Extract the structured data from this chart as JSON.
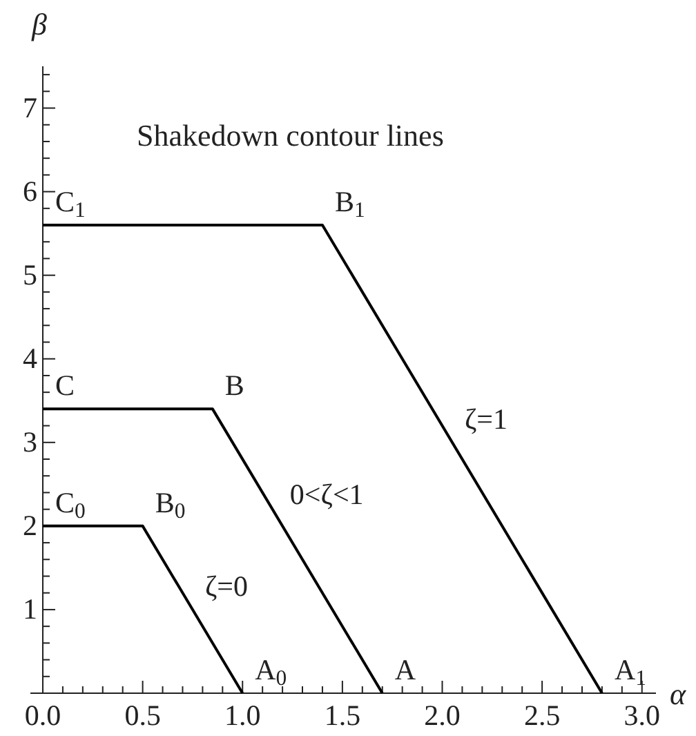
{
  "chart_data": {
    "type": "line",
    "title": "Shakedown contour lines",
    "xlabel": "α",
    "ylabel": "β",
    "series": [
      {
        "color": "#000000",
        "x": [
          0,
          0.5,
          1.0
        ],
        "values": [
          2,
          2,
          0
        ]
      },
      {
        "color": "#000000",
        "x": [
          0,
          0.85,
          1.7
        ],
        "values": [
          3.4,
          3.4,
          0
        ]
      },
      {
        "color": "#000000",
        "x": [
          0,
          1.4,
          2.8
        ],
        "values": [
          5.6,
          5.6,
          0
        ]
      }
    ],
    "xlim": [
      0,
      3.07
    ],
    "ylim": [
      0,
      7.5
    ],
    "xticks": [
      {
        "value": 0,
        "label": "0.0"
      },
      {
        "value": 0.1,
        "label": null
      },
      {
        "value": 0.2,
        "label": null
      },
      {
        "value": 0.3,
        "label": null
      },
      {
        "value": 0.4,
        "label": null
      },
      0.5,
      {
        "value": 0.6,
        "label": null
      },
      {
        "value": 0.7,
        "label": null
      },
      {
        "value": 0.8,
        "label": null
      },
      {
        "value": 0.9,
        "label": null
      },
      {
        "value": 1,
        "label": "1.0"
      },
      {
        "value": 1.1,
        "label": null
      },
      {
        "value": 1.2,
        "label": null
      },
      {
        "value": 1.3,
        "label": null
      },
      {
        "value": 1.4,
        "label": null
      },
      1.5,
      {
        "value": 1.6,
        "label": null
      },
      {
        "value": 1.7,
        "label": null
      },
      {
        "value": 1.8,
        "label": null
      },
      {
        "value": 1.9,
        "label": null
      },
      {
        "value": 2,
        "label": "2.0"
      },
      {
        "value": 2.1,
        "label": null
      },
      {
        "value": 2.2,
        "label": null
      },
      {
        "value": 2.3,
        "label": null
      },
      {
        "value": 2.4,
        "label": null
      },
      2.5,
      {
        "value": 2.6,
        "label": null
      },
      {
        "value": 2.7,
        "label": null
      },
      {
        "value": 2.8,
        "label": null
      },
      {
        "value": 2.9,
        "label": null
      },
      {
        "value": 3,
        "label": "3.0"
      }
    ],
    "yticks": [
      {
        "value": 0.2,
        "label": null
      },
      {
        "value": 0.4,
        "label": null
      },
      {
        "value": 0.6,
        "label": null
      },
      {
        "value": 0.8,
        "label": null
      },
      1,
      {
        "value": 1.2,
        "label": null
      },
      {
        "value": 1.4,
        "label": null
      },
      {
        "value": 1.6,
        "label": null
      },
      {
        "value": 1.8,
        "label": null
      },
      2,
      {
        "value": 2.2,
        "label": null
      },
      {
        "value": 2.4,
        "label": null
      },
      {
        "value": 2.6,
        "label": null
      },
      {
        "value": 2.8,
        "label": null
      },
      3,
      {
        "value": 3.2,
        "label": null
      },
      {
        "value": 3.4,
        "label": null
      },
      {
        "value": 3.6,
        "label": null
      },
      {
        "value": 3.8,
        "label": null
      },
      4,
      {
        "value": 4.2,
        "label": null
      },
      {
        "value": 4.4,
        "label": null
      },
      {
        "value": 4.6,
        "label": null
      },
      {
        "value": 4.8,
        "label": null
      },
      5,
      {
        "value": 5.2,
        "label": null
      },
      {
        "value": 5.4,
        "label": null
      },
      {
        "value": 5.6,
        "label": null
      },
      {
        "value": 5.8,
        "label": null
      },
      6,
      {
        "value": 6.2,
        "label": null
      },
      {
        "value": 6.4,
        "label": null
      },
      {
        "value": 6.6,
        "label": null
      },
      {
        "value": 6.8,
        "label": null
      },
      7,
      {
        "value": 7.2,
        "label": null
      },
      {
        "value": 7.4,
        "label": null
      }
    ],
    "annotations": [
      {
        "text": "C$_{1}$",
        "x": 0,
        "y": 5.6
      },
      {
        "text": "B$_{1}$",
        "x": 1.4,
        "y": 5.6
      },
      {
        "text": "C",
        "x": 0,
        "y": 3.4
      },
      {
        "text": "B",
        "x": 0.85,
        "y": 3.4
      },
      {
        "text": "C$_{0}$",
        "x": 0,
        "y": 2
      },
      {
        "text": "B$_{0}$",
        "x": 0.5,
        "y": 2
      },
      {
        "text": "A$_{0}$",
        "x": 1,
        "y": 0
      },
      {
        "text": "A",
        "x": 1.7,
        "y": 0
      },
      {
        "text": "A$_{1}$",
        "x": 2.8,
        "y": 0
      },
      {
        "text": "ζ=0",
        "x": 0.75,
        "y": 1
      },
      {
        "text": "0<ζ<1",
        "x": 1.175,
        "y": 2.1
      },
      {
        "text": "ζ=1",
        "x": 2.05,
        "y": 3
      }
    ],
    "line_style": "solid",
    "marker": "none",
    "grid": false
  }
}
